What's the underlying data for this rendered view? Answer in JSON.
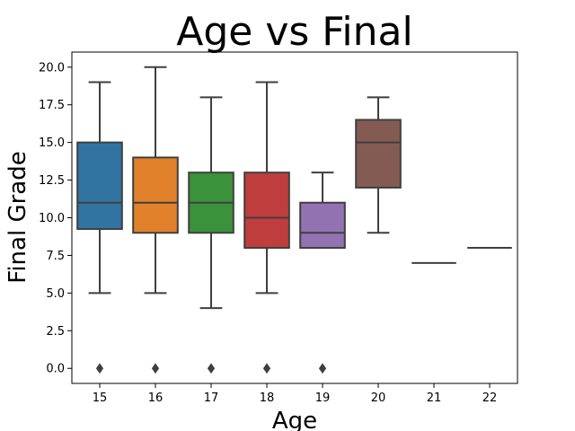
{
  "chart_data": {
    "type": "box",
    "title": "Age vs Final",
    "xlabel": "Age",
    "ylabel": "Final Grade",
    "categories": [
      "15",
      "16",
      "17",
      "18",
      "19",
      "20",
      "21",
      "22"
    ],
    "ylim": [
      -1,
      21
    ],
    "yticks": [
      "0.0",
      "2.5",
      "5.0",
      "7.5",
      "10.0",
      "12.5",
      "15.0",
      "17.5",
      "20.0"
    ],
    "grid": false,
    "boxes": [
      {
        "category": "15",
        "whisker_low": 5,
        "q1": 9.25,
        "median": 11,
        "q3": 15,
        "whisker_high": 19,
        "outliers": [
          0
        ],
        "color": "#3274a1"
      },
      {
        "category": "16",
        "whisker_low": 5,
        "q1": 9,
        "median": 11,
        "q3": 14,
        "whisker_high": 20,
        "outliers": [
          0
        ],
        "color": "#e1812c"
      },
      {
        "category": "17",
        "whisker_low": 4,
        "q1": 9,
        "median": 11,
        "q3": 13,
        "whisker_high": 18,
        "outliers": [
          0
        ],
        "color": "#3a923a"
      },
      {
        "category": "18",
        "whisker_low": 5,
        "q1": 8,
        "median": 10,
        "q3": 13,
        "whisker_high": 19,
        "outliers": [
          0
        ],
        "color": "#c03d3e"
      },
      {
        "category": "19",
        "whisker_low": 8,
        "q1": 8,
        "median": 9,
        "q3": 11,
        "whisker_high": 13,
        "outliers": [
          0
        ],
        "color": "#9372b2"
      },
      {
        "category": "20",
        "whisker_low": 9,
        "q1": 12,
        "median": 15,
        "q3": 16.5,
        "whisker_high": 18,
        "outliers": [],
        "color": "#845b53"
      },
      {
        "category": "21",
        "whisker_low": 7,
        "q1": 7,
        "median": 7,
        "q3": 7,
        "whisker_high": 7,
        "outliers": [],
        "color": "#d684bd"
      },
      {
        "category": "22",
        "whisker_low": 8,
        "q1": 8,
        "median": 8,
        "q3": 8,
        "whisker_high": 8,
        "outliers": [],
        "color": "#7f7f7f"
      }
    ],
    "line_color": "#3f3f3f"
  }
}
